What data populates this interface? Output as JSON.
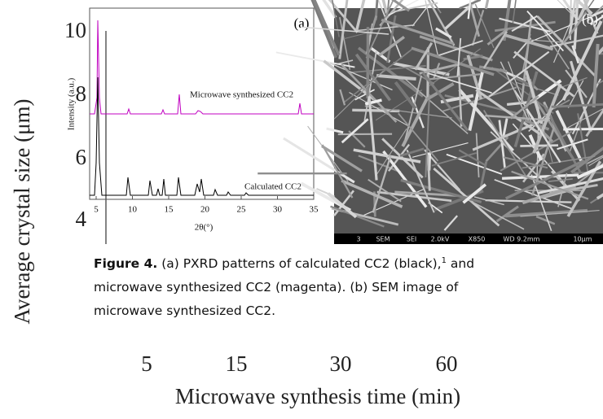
{
  "background_chart": {
    "y_axis_label": "Average crystal size (μm)",
    "y_tick_labels": [
      "10",
      "8",
      "6",
      "4"
    ],
    "x_tick_labels": [
      "5",
      "15",
      "30",
      "60"
    ],
    "x_axis_label": "Microwave synthesis time (min)"
  },
  "figure": {
    "panel_a": {
      "label": "(a)",
      "y_axis_label": "Intensity (a.u.)",
      "x_axis_label": "2θ(°)",
      "x_tick_labels": [
        "5",
        "10",
        "15",
        "20",
        "25",
        "30",
        "35"
      ],
      "trace_labels": [
        "Microwave synthesized CC2",
        "Calculated CC2"
      ]
    },
    "panel_b": {
      "label": "(b)",
      "info_bar": [
        "3",
        "SEM",
        "SEI",
        "2.0kV",
        "X850",
        "WD 9.2mm",
        "10μm"
      ]
    },
    "caption": {
      "label": "Figure 4.",
      "text_1": " (a) PXRD patterns of calculated CC2 (black),",
      "superscript": "1",
      "text_2": " and microwave synthesized CC2 (magenta). (b) SEM image of microwave synthesized CC2."
    }
  }
}
